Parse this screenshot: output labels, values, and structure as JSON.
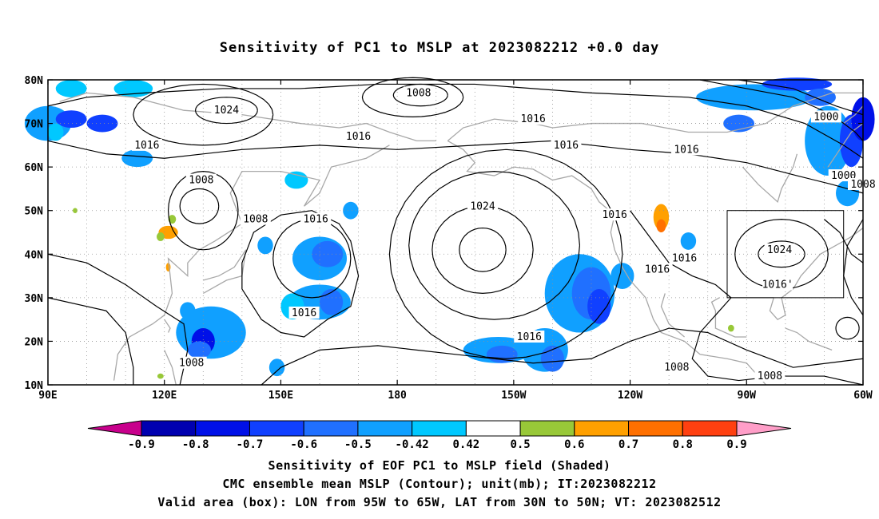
{
  "title": "Sensitivity of PC1 to MSLP at 2023082212 +0.0 day",
  "captions": {
    "line1": "Sensitivity of EOF PC1 to MSLP field (Shaded)",
    "line2": "CMC ensemble mean MSLP (Contour); unit(mb); IT:2023082212",
    "line3": "Valid area (box): LON from 95W to 65W, LAT from 30N to 50N; VT: 2023082512"
  },
  "map": {
    "lon_range": [
      90,
      300
    ],
    "lat_range": [
      10,
      80
    ],
    "x_ticks": [
      {
        "lon": 90,
        "label": "90E"
      },
      {
        "lon": 120,
        "label": "120E"
      },
      {
        "lon": 150,
        "label": "150E"
      },
      {
        "lon": 180,
        "label": "180"
      },
      {
        "lon": 210,
        "label": "150W"
      },
      {
        "lon": 240,
        "label": "120W"
      },
      {
        "lon": 270,
        "label": "90W"
      },
      {
        "lon": 300,
        "label": "60W"
      }
    ],
    "y_ticks": [
      {
        "lat": 80,
        "label": "80N"
      },
      {
        "lat": 70,
        "label": "70N"
      },
      {
        "lat": 60,
        "label": "60N"
      },
      {
        "lat": 50,
        "label": "50N"
      },
      {
        "lat": 40,
        "label": "40N"
      },
      {
        "lat": 30,
        "label": "30N"
      },
      {
        "lat": 20,
        "label": "20N"
      },
      {
        "lat": 10,
        "label": "10N"
      }
    ],
    "valid_box": {
      "lon": [
        265,
        295
      ],
      "lat": [
        30,
        50
      ]
    },
    "contour_labels": [
      {
        "text": "1008",
        "lon": 185.5,
        "lat": 77
      },
      {
        "text": "1024",
        "lon": 136,
        "lat": 73
      },
      {
        "text": "1016",
        "lon": 215,
        "lat": 71
      },
      {
        "text": "1016",
        "lon": 170,
        "lat": 67
      },
      {
        "text": "1016",
        "lon": 223.5,
        "lat": 65
      },
      {
        "text": "1016",
        "lon": 115.5,
        "lat": 65
      },
      {
        "text": "1016",
        "lon": 254.5,
        "lat": 64
      },
      {
        "text": "1000",
        "lon": 290.5,
        "lat": 71.5
      },
      {
        "text": "1000",
        "lon": 295,
        "lat": 58
      },
      {
        "text": "1008",
        "lon": 300,
        "lat": 56
      },
      {
        "text": "1008",
        "lon": 129.5,
        "lat": 57
      },
      {
        "text": "1024",
        "lon": 202,
        "lat": 51
      },
      {
        "text": "1008",
        "lon": 143.5,
        "lat": 48
      },
      {
        "text": "1016",
        "lon": 159,
        "lat": 48
      },
      {
        "text": "1016",
        "lon": 236,
        "lat": 49
      },
      {
        "text": "1024",
        "lon": 278.5,
        "lat": 41
      },
      {
        "text": "1016",
        "lon": 254,
        "lat": 39
      },
      {
        "text": "1016",
        "lon": 247,
        "lat": 36.5
      },
      {
        "text": "1016'",
        "lon": 278,
        "lat": 33
      },
      {
        "text": "1016",
        "lon": 156,
        "lat": 26.5
      },
      {
        "text": "1016",
        "lon": 214,
        "lat": 21
      },
      {
        "text": "1008",
        "lon": 127,
        "lat": 15
      },
      {
        "text": "1008",
        "lon": 252,
        "lat": 14
      },
      {
        "text": "1008",
        "lon": 276,
        "lat": 12
      }
    ]
  },
  "colorbar": {
    "labels": [
      "-0.9",
      "-0.8",
      "-0.7",
      "-0.6",
      "-0.5",
      "-0.42",
      "0.42",
      "0.5",
      "0.6",
      "0.7",
      "0.8",
      "0.9"
    ],
    "colors": [
      "#0000b0",
      "#0010e8",
      "#1040ff",
      "#2070ff",
      "#10a0ff",
      "#00c8ff",
      "#ffffff",
      "#98c838",
      "#ffa000",
      "#ff7000",
      "#ff4010",
      "#ff0000",
      "#ff9ec8"
    ],
    "low_end_color": "#c8008c"
  }
}
